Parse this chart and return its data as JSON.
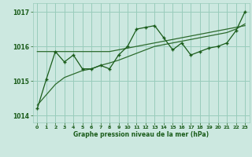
{
  "x": [
    0,
    1,
    2,
    3,
    4,
    5,
    6,
    7,
    8,
    9,
    10,
    11,
    12,
    13,
    14,
    15,
    16,
    17,
    18,
    19,
    20,
    21,
    22,
    23
  ],
  "y_line": [
    1014.2,
    1015.05,
    1015.85,
    1015.55,
    1015.75,
    1015.35,
    1015.35,
    1015.45,
    1015.35,
    1015.75,
    1016.0,
    1016.5,
    1016.55,
    1016.6,
    1016.25,
    1015.9,
    1016.1,
    1015.75,
    1015.85,
    1015.95,
    1016.0,
    1016.1,
    1016.45,
    1017.0
  ],
  "y_trend1": [
    1015.85,
    1015.85,
    1015.85,
    1015.85,
    1015.85,
    1015.85,
    1015.85,
    1015.85,
    1015.85,
    1015.9,
    1015.95,
    1016.0,
    1016.05,
    1016.1,
    1016.15,
    1016.2,
    1016.25,
    1016.3,
    1016.35,
    1016.4,
    1016.45,
    1016.5,
    1016.55,
    1016.6
  ],
  "y_trend2": [
    1014.3,
    1014.6,
    1014.9,
    1015.1,
    1015.2,
    1015.3,
    1015.35,
    1015.45,
    1015.52,
    1015.6,
    1015.7,
    1015.8,
    1015.9,
    1016.0,
    1016.05,
    1016.1,
    1016.15,
    1016.2,
    1016.25,
    1016.3,
    1016.35,
    1016.4,
    1016.5,
    1016.65
  ],
  "bg_color": "#cce8e0",
  "grid_color": "#99ccbb",
  "line_color": "#1a5c1a",
  "trend_color": "#2d6b2d",
  "xlabel": "Graphe pression niveau de la mer (hPa)",
  "ylim": [
    1013.8,
    1017.25
  ],
  "yticks": [
    1014,
    1015,
    1016,
    1017
  ],
  "xlim": [
    -0.5,
    23.5
  ]
}
